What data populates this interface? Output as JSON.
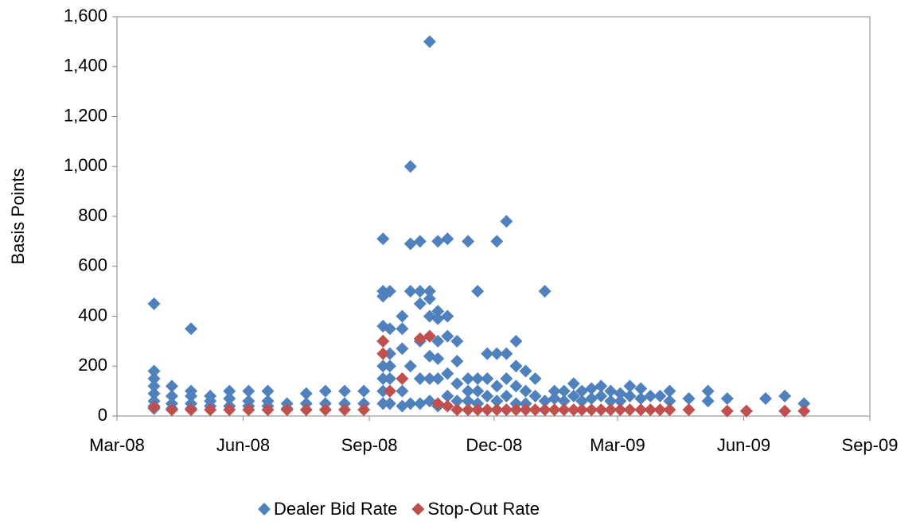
{
  "chart_data": {
    "type": "scatter",
    "y_label": "Basis Points",
    "xlim": [
      39508,
      40057
    ],
    "xticks": [
      {
        "value": 39508,
        "label": "Mar-08"
      },
      {
        "value": 39600,
        "label": "Jun-08"
      },
      {
        "value": 39692,
        "label": "Sep-08"
      },
      {
        "value": 39783,
        "label": "Dec-08"
      },
      {
        "value": 39873,
        "label": "Mar-09"
      },
      {
        "value": 39965,
        "label": "Jun-09"
      },
      {
        "value": 40057,
        "label": "Sep-09"
      }
    ],
    "ylim": [
      0,
      1600
    ],
    "yticks": [
      0,
      200,
      400,
      600,
      800,
      {
        "value": 1000,
        "label": "1,000"
      },
      {
        "value": 1200,
        "label": "1,200"
      },
      {
        "value": 1400,
        "label": "1,400"
      },
      {
        "value": 1600,
        "label": "1,600"
      }
    ],
    "legend": "bottom",
    "series": [
      {
        "name": "Dealer Bid Rate",
        "color": "#4f81bd",
        "x": [
          39535,
          39535,
          39535,
          39535,
          39535,
          39535,
          39535,
          39535,
          39548,
          39548,
          39548,
          39548,
          39562,
          39562,
          39562,
          39562,
          39562,
          39576,
          39576,
          39576,
          39590,
          39590,
          39590,
          39604,
          39604,
          39604,
          39618,
          39618,
          39618,
          39632,
          39632,
          39646,
          39646,
          39660,
          39660,
          39674,
          39674,
          39688,
          39688,
          39702,
          39702,
          39702,
          39702,
          39702,
          39702,
          39702,
          39702,
          39702,
          39707,
          39707,
          39707,
          39707,
          39707,
          39707,
          39707,
          39716,
          39716,
          39716,
          39716,
          39716,
          39722,
          39722,
          39722,
          39722,
          39722,
          39729,
          39729,
          39729,
          39729,
          39729,
          39729,
          39736,
          39736,
          39736,
          39736,
          39736,
          39736,
          39736,
          39736,
          39742,
          39742,
          39742,
          39742,
          39742,
          39742,
          39742,
          39749,
          39749,
          39749,
          39749,
          39749,
          39756,
          39756,
          39756,
          39756,
          39764,
          39764,
          39764,
          39764,
          39771,
          39771,
          39771,
          39771,
          39778,
          39778,
          39778,
          39785,
          39785,
          39785,
          39785,
          39792,
          39792,
          39792,
          39792,
          39799,
          39799,
          39799,
          39799,
          39806,
          39806,
          39806,
          39813,
          39813,
          39820,
          39820,
          39827,
          39827,
          39834,
          39834,
          39841,
          39841,
          39847,
          39847,
          39854,
          39854,
          39861,
          39861,
          39868,
          39868,
          39875,
          39875,
          39882,
          39882,
          39890,
          39890,
          39897,
          39904,
          39911,
          39911,
          39925,
          39939,
          39939,
          39953,
          39967,
          39981,
          39995,
          40009
        ],
        "values": [
          450,
          180,
          150,
          120,
          90,
          60,
          40,
          30,
          120,
          80,
          50,
          30,
          350,
          100,
          80,
          50,
          30,
          80,
          60,
          40,
          100,
          70,
          40,
          100,
          60,
          40,
          100,
          60,
          40,
          50,
          30,
          90,
          50,
          100,
          50,
          100,
          50,
          100,
          50,
          710,
          500,
          480,
          360,
          300,
          200,
          150,
          100,
          50,
          500,
          350,
          250,
          200,
          150,
          100,
          50,
          400,
          350,
          270,
          100,
          40,
          1000,
          690,
          500,
          200,
          50,
          700,
          500,
          450,
          300,
          150,
          50,
          1500,
          500,
          470,
          400,
          320,
          240,
          150,
          60,
          700,
          420,
          390,
          300,
          230,
          150,
          40,
          710,
          400,
          320,
          170,
          80,
          300,
          220,
          130,
          60,
          700,
          150,
          100,
          60,
          500,
          150,
          100,
          50,
          250,
          150,
          80,
          700,
          250,
          120,
          60,
          780,
          250,
          150,
          80,
          300,
          200,
          120,
          50,
          180,
          100,
          50,
          150,
          80,
          500,
          60,
          100,
          70,
          100,
          60,
          130,
          80,
          100,
          60,
          110,
          70,
          120,
          80,
          100,
          60,
          90,
          60,
          120,
          80,
          110,
          70,
          80,
          80,
          100,
          60,
          70,
          100,
          60,
          70,
          20,
          70,
          80,
          50
        ]
      },
      {
        "name": "Stop-Out Rate",
        "color": "#c0504d",
        "x": [
          39535,
          39548,
          39562,
          39576,
          39590,
          39604,
          39618,
          39632,
          39646,
          39660,
          39674,
          39688,
          39702,
          39702,
          39707,
          39716,
          39729,
          39736,
          39742,
          39749,
          39756,
          39764,
          39771,
          39778,
          39785,
          39792,
          39799,
          39806,
          39813,
          39820,
          39827,
          39834,
          39841,
          39847,
          39854,
          39861,
          39868,
          39875,
          39882,
          39890,
          39897,
          39904,
          39911,
          39925,
          39953,
          39967,
          39995,
          40009
        ],
        "values": [
          35,
          25,
          25,
          25,
          25,
          25,
          25,
          25,
          25,
          25,
          25,
          25,
          300,
          250,
          100,
          150,
          310,
          320,
          50,
          40,
          25,
          25,
          25,
          25,
          25,
          25,
          25,
          25,
          25,
          25,
          25,
          25,
          25,
          25,
          25,
          25,
          25,
          25,
          25,
          25,
          25,
          25,
          25,
          25,
          20,
          20,
          20,
          20
        ]
      }
    ]
  }
}
